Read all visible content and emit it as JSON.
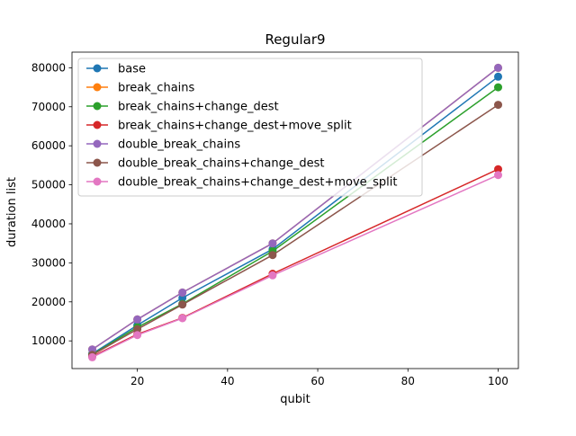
{
  "chart_data": {
    "type": "line",
    "title": "Regular9",
    "xlabel": "qubit",
    "ylabel": "duration list",
    "xlim": [
      5.5,
      104.5
    ],
    "ylim": [
      2900,
      84000
    ],
    "x": [
      10,
      20,
      30,
      50,
      100
    ],
    "xticks": [
      20,
      40,
      60,
      80,
      100
    ],
    "yticks": [
      10000,
      20000,
      30000,
      40000,
      50000,
      60000,
      70000,
      80000
    ],
    "grid": false,
    "legend_position": "top-left",
    "series": [
      {
        "name": "base",
        "color": "#1f77b4",
        "values": [
          6700,
          14000,
          21000,
          33500,
          77700
        ]
      },
      {
        "name": "break_chains",
        "color": "#ff7f0e",
        "values": [
          7800,
          15500,
          22400,
          35000,
          80000
        ]
      },
      {
        "name": "break_chains+change_dest",
        "color": "#2ca02c",
        "values": [
          6500,
          13500,
          19500,
          33000,
          75000
        ]
      },
      {
        "name": "break_chains+change_dest+move_split",
        "color": "#d62728",
        "values": [
          6000,
          11700,
          15900,
          27200,
          54000
        ]
      },
      {
        "name": "double_break_chains",
        "color": "#9467bd",
        "values": [
          7800,
          15500,
          22400,
          35000,
          80000
        ]
      },
      {
        "name": "double_break_chains+change_dest",
        "color": "#8c564b",
        "values": [
          6400,
          13000,
          19300,
          32000,
          70500
        ]
      },
      {
        "name": "double_break_chains+change_dest+move_split",
        "color": "#e377c2",
        "values": [
          5800,
          11500,
          15800,
          26800,
          52500
        ]
      }
    ]
  }
}
